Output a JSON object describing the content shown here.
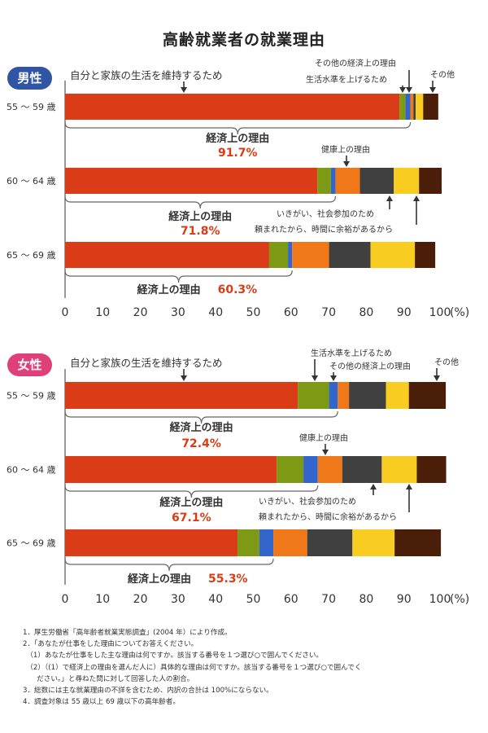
{
  "title": "高齢就業者の就業理由",
  "colors": {
    "経済上の理由_維持": "#d93c16",
    "生活水準を上げるため": "#7e9a14",
    "その他の経済上の理由": "#3366cc",
    "健康上の理由": "#f07818",
    "いきがい、社会参加のため": "#404040",
    "頼まれたから、時間に余裕があるから": "#f8cc20",
    "その他": "#4a1e08",
    "bracket": "#666666",
    "summary_value": "#d93c16",
    "badge_male": "#2f55a4",
    "badge_female": "#e0407a"
  },
  "chart_data": [
    {
      "type": "bar",
      "orientation": "horizontal",
      "stacked": true,
      "group_label": "男性",
      "categories": [
        "55 〜 59 歳",
        "60 〜 64 歳",
        "65 〜 69 歳"
      ],
      "series": [
        {
          "name": "自分と家族の生活を維持するため",
          "values": [
            88.8,
            67.0,
            54.2
          ]
        },
        {
          "name": "生活水準を上げるため",
          "values": [
            1.6,
            3.6,
            5.0
          ]
        },
        {
          "name": "その他の経済上の理由",
          "values": [
            1.3,
            1.2,
            1.1
          ]
        },
        {
          "name": "健康上の理由",
          "values": [
            0.8,
            6.5,
            9.8
          ]
        },
        {
          "name": "いきがい、社会参加のため",
          "values": [
            0.6,
            9.0,
            11.0
          ]
        },
        {
          "name": "頼まれたから、時間に余裕があるから",
          "values": [
            2.0,
            6.7,
            11.8
          ]
        },
        {
          "name": "その他",
          "values": [
            4.0,
            6.0,
            5.4
          ]
        }
      ],
      "xlim": [
        0,
        100
      ],
      "xticks": [
        "0",
        "10",
        "20",
        "30",
        "40",
        "50",
        "60",
        "70",
        "80",
        "90",
        "100"
      ],
      "xunit": "(%)",
      "summary_label": "経済上の理由",
      "summary_values": [
        "91.7%",
        "71.8%",
        "60.3%"
      ],
      "annotations": {
        "main": "自分と家族の生活を維持するため",
        "other_econ": "その他の経済上の理由",
        "raise_living": "生活水準を上げるため",
        "other": "その他",
        "health": "健康上の理由",
        "ikigai": "いきがい、社会参加のため",
        "tanomare": "頼まれたから、時間に余裕があるから"
      }
    },
    {
      "type": "bar",
      "orientation": "horizontal",
      "stacked": true,
      "group_label": "女性",
      "categories": [
        "55 〜 59 歳",
        "60 〜 64 歳",
        "65 〜 69 歳"
      ],
      "series": [
        {
          "name": "自分と家族の生活を維持するため",
          "values": [
            61.8,
            56.2,
            45.8
          ]
        },
        {
          "name": "生活水準を上げるため",
          "values": [
            8.3,
            7.1,
            5.8
          ]
        },
        {
          "name": "その他の経済上の理由",
          "values": [
            2.3,
            3.8,
            3.7
          ]
        },
        {
          "name": "健康上の理由",
          "values": [
            3.0,
            6.5,
            9.0
          ]
        },
        {
          "name": "いきがい、社会参加のため",
          "values": [
            9.8,
            10.5,
            12.0
          ]
        },
        {
          "name": "頼まれたから、時間に余裕があるから",
          "values": [
            6.1,
            9.3,
            11.2
          ]
        },
        {
          "name": "その他",
          "values": [
            9.8,
            7.8,
            12.3
          ]
        }
      ],
      "xlim": [
        0,
        100
      ],
      "xticks": [
        "0",
        "10",
        "20",
        "30",
        "40",
        "50",
        "60",
        "70",
        "80",
        "90",
        "100"
      ],
      "xunit": "(%)",
      "summary_label": "経済上の理由",
      "summary_values": [
        "72.4%",
        "67.1%",
        "55.3%"
      ],
      "annotations": {
        "main": "自分と家族の生活を維持するため",
        "raise_living": "生活水準を上げるため",
        "other_econ": "その他の経済上の理由",
        "other": "その他",
        "health": "健康上の理由",
        "ikigai": "いきがい、社会参加のため",
        "tanomare": "頼まれたから、時間に余裕があるから"
      }
    }
  ],
  "notes": [
    "1．厚生労働省「高年齢者就業実態調査」(2004 年）により作成。",
    "2．「あなたが仕事をした理由についてお答えください。",
    "　（1）あなたが仕事をした主な理由は何ですか。該当する番号を１つ選び○で囲んでください。",
    "　（2）（(1）で経済上の理由を選んだ人に）具体的な理由は何ですか。該当する番号を１つ選び○で囲んでく",
    "　　ださい。」と尋ねた問に対して回答した人の割合。",
    "3．総数には主な就業理由の不詳を含むため、内訳の合計は 100%にならない。",
    "4．調査対象は 55 歳以上 69 歳以下の高年齢者。"
  ]
}
